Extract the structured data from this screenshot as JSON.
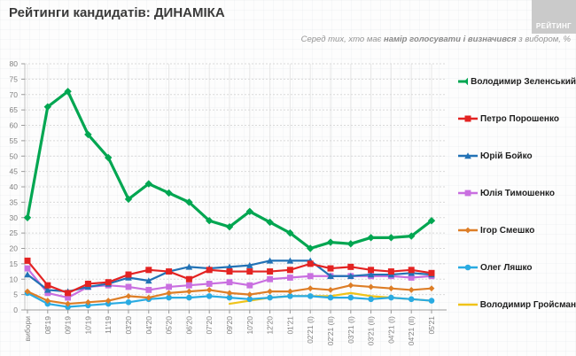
{
  "header": {
    "title_prefix": "Рейтинги кандидатів: ",
    "title_emphasis": "ДИНАМІКА",
    "subtitle_prefix": "Серед тих, хто має ",
    "subtitle_bold": "намір голосувати і визначився",
    "subtitle_suffix": " з вибором, %",
    "logo_text": "РЕЙТИНГ"
  },
  "chart_data": {
    "type": "line",
    "title": "Рейтинги кандидатів: ДИНАМІКА",
    "subtitle": "Серед тих, хто має намір голосувати і визначився з вибором, %",
    "xlabel": "",
    "ylabel": "%",
    "ylim": [
      0,
      80
    ],
    "ystep": 5,
    "grid": {
      "horizontal": "dashed",
      "vertical": "solid"
    },
    "legend_position": "right",
    "categories": [
      "вибори",
      "08'19",
      "09'19",
      "10'19",
      "11'19",
      "03'20",
      "04'20",
      "05'20",
      "06'20",
      "07'20",
      "09'20",
      "10'20",
      "12'20",
      "01'21",
      "02'21 (I)",
      "02'21 (II)",
      "03'21 (I)",
      "03'21 (II)",
      "04'21 (I)",
      "04'21 (II)",
      "05'21"
    ],
    "series": [
      {
        "key": "zelensky",
        "name": "Володимир Зеленський",
        "color": "#00A651",
        "marker": "diamond",
        "marker_size": 4.2,
        "line_width": 3.2,
        "values": [
          30,
          66,
          71,
          57,
          49.5,
          36,
          41,
          38,
          35,
          29,
          27,
          32,
          28.5,
          25,
          20,
          22,
          21.5,
          23.5,
          23.5,
          24,
          29
        ]
      },
      {
        "key": "poroshenko",
        "name": "Петро Порошенко",
        "color": "#E32322",
        "marker": "square",
        "marker_size": 3.5,
        "line_width": 2.2,
        "values": [
          16,
          8,
          5.5,
          8.5,
          9,
          11.5,
          13,
          12.5,
          10,
          13,
          12.5,
          12.5,
          12.5,
          13,
          15,
          13.5,
          14,
          13,
          12.5,
          13,
          12
        ]
      },
      {
        "key": "boyko",
        "name": "Юрій Бойко",
        "color": "#2272B5",
        "marker": "triangle",
        "marker_size": 3.8,
        "line_width": 2.2,
        "values": [
          11.5,
          6.5,
          6,
          7.5,
          8.5,
          10.5,
          9.5,
          12.5,
          14,
          13.5,
          14,
          14.5,
          16,
          16,
          16,
          11,
          11,
          11.5,
          11.5,
          12,
          11.5
        ]
      },
      {
        "key": "tymoshenko",
        "name": "Юлія Тимошенко",
        "color": "#C96FE0",
        "marker": "square",
        "marker_size": 3.4,
        "line_width": 2.2,
        "values": [
          13.5,
          5.5,
          4,
          7.5,
          8,
          7.5,
          6.5,
          7.5,
          8,
          8.5,
          9,
          8,
          10,
          10.5,
          11,
          11,
          11,
          11,
          11,
          10.5,
          11
        ]
      },
      {
        "key": "smeshko",
        "name": "Ігор Смешко",
        "color": "#DD7E27",
        "marker": "diamond",
        "marker_size": 3.4,
        "line_width": 2.2,
        "values": [
          6,
          3,
          2,
          2.5,
          3,
          4.5,
          4,
          5.5,
          6,
          6.5,
          5.5,
          5,
          6,
          6,
          7,
          6.5,
          8,
          7.5,
          7,
          6.5,
          7
        ]
      },
      {
        "key": "lyashko",
        "name": "Олег Ляшко",
        "color": "#29ABE2",
        "marker": "circle",
        "marker_size": 3.3,
        "line_width": 2.2,
        "values": [
          5.5,
          2,
          1,
          1.5,
          2,
          2.5,
          3.5,
          4,
          4,
          4.5,
          4,
          3.5,
          4,
          4.5,
          4.5,
          4,
          4,
          3.5,
          4,
          3.5,
          3
        ]
      },
      {
        "key": "groysman",
        "name": "Володимир Гройсман",
        "color": "#EFC319",
        "marker": "none",
        "marker_size": 0,
        "line_width": 2.2,
        "values": [
          null,
          null,
          null,
          null,
          null,
          null,
          null,
          null,
          null,
          null,
          2,
          3,
          4,
          4.5,
          4.5,
          4.5,
          5.5,
          4.5,
          4,
          3.5,
          3
        ]
      }
    ]
  }
}
